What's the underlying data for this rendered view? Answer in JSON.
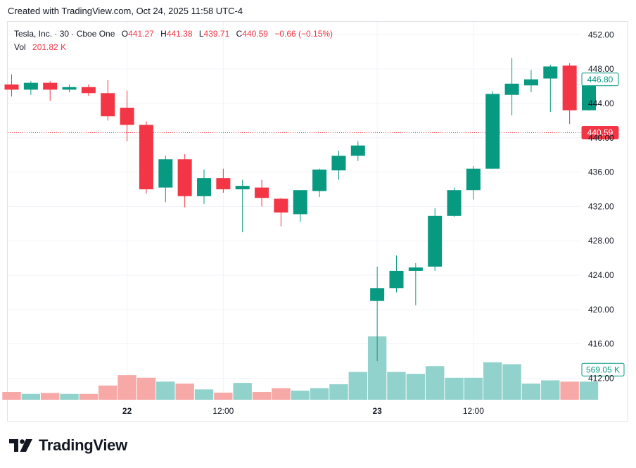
{
  "header": {
    "created_text": "Created with TradingView.com, Oct 24, 2025 11:58 UTC-4"
  },
  "legend": {
    "symbol": "Tesla, Inc. · 30 · Cboe One",
    "open_label": "O",
    "open": "441.27",
    "high_label": "H",
    "high": "441.38",
    "low_label": "L",
    "low": "439.71",
    "close_label": "C",
    "close": "440.59",
    "change": "−0.66 (−0.15%)",
    "vol_label": "Vol",
    "vol": "201.82 K"
  },
  "footer": {
    "logo_text": "TradingView",
    "logo_icon": "tradingview-logo-icon"
  },
  "colors": {
    "up": "#089981",
    "down": "#f23645",
    "vol_up": "#92d2cc",
    "vol_down": "#f7a9a7",
    "grid": "#f0f3fa",
    "text": "#131722"
  },
  "chart_data": {
    "type": "candlestick",
    "ylim": [
      409.5,
      453.5
    ],
    "y_ticks": [
      412,
      416,
      420,
      424,
      428,
      432,
      436,
      440,
      444,
      448,
      452
    ],
    "y_tick_labels": [
      "412.00",
      "416.00",
      "420.00",
      "424.00",
      "428.00",
      "432.00",
      "436.00",
      "440.00",
      "444.00",
      "448.00",
      "452.00"
    ],
    "x_tick_labels": [
      {
        "label": "22",
        "index": 6,
        "bold": true
      },
      {
        "label": "12:00",
        "index": 11,
        "bold": false
      },
      {
        "label": "23",
        "index": 19,
        "bold": true
      },
      {
        "label": "12:00",
        "index": 24,
        "bold": false
      }
    ],
    "price_labels": [
      {
        "label": "446.80",
        "value": 446.8,
        "style": "outline"
      },
      {
        "label": "440.59",
        "value": 440.59,
        "style": "filled"
      },
      {
        "label": "569.05 K",
        "value": 413.0,
        "style": "outline"
      }
    ],
    "last_price_line": 440.59,
    "candles": [
      {
        "o": 446.2,
        "h": 447.4,
        "l": 444.8,
        "c": 445.6
      },
      {
        "o": 445.6,
        "h": 446.6,
        "l": 445.0,
        "c": 446.4
      },
      {
        "o": 446.4,
        "h": 446.6,
        "l": 444.3,
        "c": 445.6
      },
      {
        "o": 445.6,
        "h": 446.2,
        "l": 445.3,
        "c": 445.9
      },
      {
        "o": 445.9,
        "h": 446.2,
        "l": 444.9,
        "c": 445.2
      },
      {
        "o": 445.2,
        "h": 446.7,
        "l": 442.0,
        "c": 442.5
      },
      {
        "o": 443.5,
        "h": 445.5,
        "l": 439.6,
        "c": 441.5
      },
      {
        "o": 441.5,
        "h": 441.9,
        "l": 433.5,
        "c": 434.0
      },
      {
        "o": 434.2,
        "h": 437.9,
        "l": 432.5,
        "c": 437.5
      },
      {
        "o": 437.5,
        "h": 438.1,
        "l": 431.9,
        "c": 433.2
      },
      {
        "o": 433.2,
        "h": 436.3,
        "l": 432.3,
        "c": 435.3
      },
      {
        "o": 435.3,
        "h": 436.4,
        "l": 433.6,
        "c": 434.0
      },
      {
        "o": 434.0,
        "h": 435.1,
        "l": 429.0,
        "c": 434.4
      },
      {
        "o": 434.2,
        "h": 435.1,
        "l": 432.0,
        "c": 433.0
      },
      {
        "o": 432.9,
        "h": 433.0,
        "l": 429.7,
        "c": 431.3
      },
      {
        "o": 431.1,
        "h": 433.9,
        "l": 430.2,
        "c": 433.9
      },
      {
        "o": 433.8,
        "h": 436.4,
        "l": 433.1,
        "c": 436.3
      },
      {
        "o": 436.2,
        "h": 438.5,
        "l": 435.1,
        "c": 437.9
      },
      {
        "o": 437.9,
        "h": 439.6,
        "l": 437.3,
        "c": 439.1
      },
      {
        "o": 421.0,
        "h": 425.0,
        "l": 414.0,
        "c": 422.5
      },
      {
        "o": 422.5,
        "h": 426.3,
        "l": 422.0,
        "c": 424.5
      },
      {
        "o": 424.5,
        "h": 425.4,
        "l": 420.5,
        "c": 424.9
      },
      {
        "o": 425.0,
        "h": 431.8,
        "l": 424.5,
        "c": 430.9
      },
      {
        "o": 430.9,
        "h": 434.2,
        "l": 430.8,
        "c": 433.9
      },
      {
        "o": 433.9,
        "h": 436.7,
        "l": 432.8,
        "c": 436.4
      },
      {
        "o": 436.4,
        "h": 445.4,
        "l": 436.4,
        "c": 445.1
      },
      {
        "o": 445.0,
        "h": 449.3,
        "l": 442.6,
        "c": 446.3
      },
      {
        "o": 446.1,
        "h": 447.9,
        "l": 445.3,
        "c": 446.8
      },
      {
        "o": 446.9,
        "h": 448.5,
        "l": 443.0,
        "c": 448.3
      },
      {
        "o": 448.4,
        "h": 448.7,
        "l": 441.6,
        "c": 443.2
      },
      {
        "o": 443.2,
        "h": 446.9,
        "l": 443.2,
        "c": 446.8
      }
    ],
    "volumes": [
      1.2,
      0.9,
      1.05,
      0.9,
      0.9,
      2.2,
      3.8,
      3.4,
      2.8,
      2.5,
      1.6,
      1.1,
      2.6,
      1.2,
      1.8,
      1.4,
      1.8,
      2.4,
      4.3,
      9.8,
      4.3,
      4.0,
      5.2,
      3.4,
      3.4,
      5.8,
      5.5,
      2.5,
      3.0,
      2.8,
      2.8
    ]
  }
}
